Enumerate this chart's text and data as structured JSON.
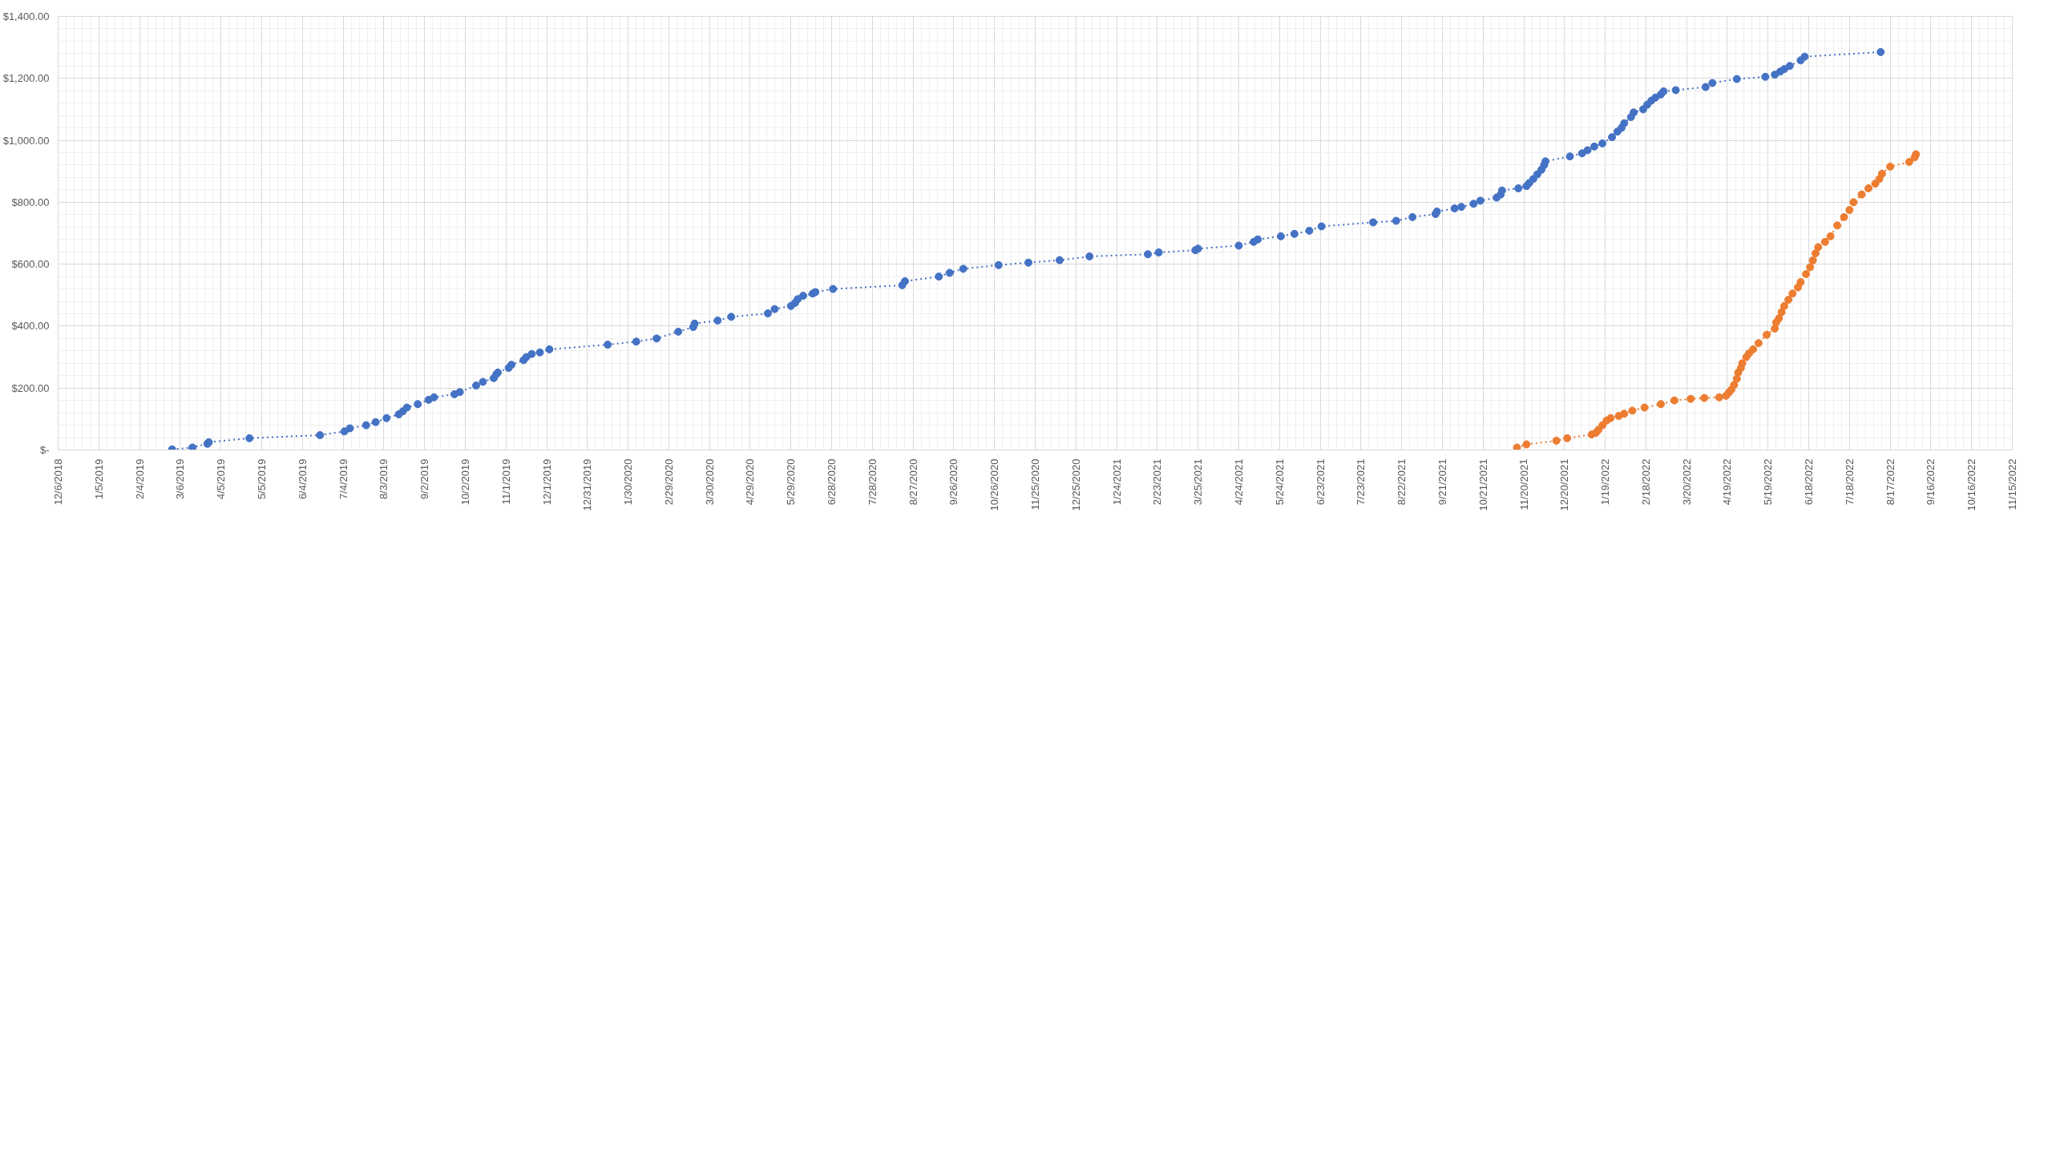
{
  "chart_data": {
    "type": "line",
    "marker": "circle",
    "line_style": "dotted",
    "grid": true,
    "xlim": [
      "2018-12-06",
      "2022-11-15"
    ],
    "xticks": [
      {
        "value": "2018-12-06",
        "label": "12/6/2018"
      },
      {
        "value": "2019-01-05",
        "label": "1/5/2019"
      },
      {
        "value": "2019-02-04",
        "label": "2/4/2019"
      },
      {
        "value": "2019-03-06",
        "label": "3/6/2019"
      },
      {
        "value": "2019-04-05",
        "label": "4/5/2019"
      },
      {
        "value": "2019-05-05",
        "label": "5/5/2019"
      },
      {
        "value": "2019-06-04",
        "label": "6/4/2019"
      },
      {
        "value": "2019-07-04",
        "label": "7/4/2019"
      },
      {
        "value": "2019-08-03",
        "label": "8/3/2019"
      },
      {
        "value": "2019-09-02",
        "label": "9/2/2019"
      },
      {
        "value": "2019-10-02",
        "label": "10/2/2019"
      },
      {
        "value": "2019-11-01",
        "label": "11/1/2019"
      },
      {
        "value": "2019-12-01",
        "label": "12/1/2019"
      },
      {
        "value": "2019-12-31",
        "label": "12/31/2019"
      },
      {
        "value": "2020-01-30",
        "label": "1/30/2020"
      },
      {
        "value": "2020-02-29",
        "label": "2/29/2020"
      },
      {
        "value": "2020-03-30",
        "label": "3/30/2020"
      },
      {
        "value": "2020-04-29",
        "label": "4/29/2020"
      },
      {
        "value": "2020-05-29",
        "label": "5/29/2020"
      },
      {
        "value": "2020-06-28",
        "label": "6/28/2020"
      },
      {
        "value": "2020-07-28",
        "label": "7/28/2020"
      },
      {
        "value": "2020-08-27",
        "label": "8/27/2020"
      },
      {
        "value": "2020-09-26",
        "label": "9/26/2020"
      },
      {
        "value": "2020-10-26",
        "label": "10/26/2020"
      },
      {
        "value": "2020-11-25",
        "label": "11/25/2020"
      },
      {
        "value": "2020-12-25",
        "label": "12/25/2020"
      },
      {
        "value": "2021-01-24",
        "label": "1/24/2021"
      },
      {
        "value": "2021-02-23",
        "label": "2/23/2021"
      },
      {
        "value": "2021-03-25",
        "label": "3/25/2021"
      },
      {
        "value": "2021-04-24",
        "label": "4/24/2021"
      },
      {
        "value": "2021-05-24",
        "label": "5/24/2021"
      },
      {
        "value": "2021-06-23",
        "label": "6/23/2021"
      },
      {
        "value": "2021-07-23",
        "label": "7/23/2021"
      },
      {
        "value": "2021-08-22",
        "label": "8/22/2021"
      },
      {
        "value": "2021-09-21",
        "label": "9/21/2021"
      },
      {
        "value": "2021-10-21",
        "label": "10/21/2021"
      },
      {
        "value": "2021-11-20",
        "label": "11/20/2021"
      },
      {
        "value": "2021-12-20",
        "label": "12/20/2021"
      },
      {
        "value": "2022-01-19",
        "label": "1/19/2022"
      },
      {
        "value": "2022-02-18",
        "label": "2/18/2022"
      },
      {
        "value": "2022-03-20",
        "label": "3/20/2022"
      },
      {
        "value": "2022-04-19",
        "label": "4/19/2022"
      },
      {
        "value": "2022-05-19",
        "label": "5/19/2022"
      },
      {
        "value": "2022-06-18",
        "label": "6/18/2022"
      },
      {
        "value": "2022-07-18",
        "label": "7/18/2022"
      },
      {
        "value": "2022-08-17",
        "label": "8/17/2022"
      },
      {
        "value": "2022-09-16",
        "label": "9/16/2022"
      },
      {
        "value": "2022-10-16",
        "label": "10/16/2022"
      },
      {
        "value": "2022-11-15",
        "label": "11/15/2022"
      }
    ],
    "ylim": [
      0,
      1400
    ],
    "yticks": [
      {
        "value": 0,
        "label": "$-"
      },
      {
        "value": 200,
        "label": "$200.00"
      },
      {
        "value": 400,
        "label": "$400.00"
      },
      {
        "value": 600,
        "label": "$600.00"
      },
      {
        "value": 800,
        "label": "$800.00"
      },
      {
        "value": 1000,
        "label": "$1,000.00"
      },
      {
        "value": 1200,
        "label": "$1,200.00"
      },
      {
        "value": 1400,
        "label": "$1,400.00"
      }
    ],
    "series": [
      {
        "color": "#4472c4",
        "x": [
          "2019-02-28",
          "2019-03-15",
          "2019-03-26",
          "2019-03-27",
          "2019-04-26",
          "2019-06-17",
          "2019-07-05",
          "2019-07-09",
          "2019-07-21",
          "2019-07-28",
          "2019-08-05",
          "2019-08-14",
          "2019-08-17",
          "2019-08-20",
          "2019-08-28",
          "2019-09-05",
          "2019-09-09",
          "2019-09-24",
          "2019-09-28",
          "2019-10-10",
          "2019-10-15",
          "2019-10-23",
          "2019-10-25",
          "2019-10-26",
          "2019-11-03",
          "2019-11-05",
          "2019-11-14",
          "2019-11-16",
          "2019-11-20",
          "2019-11-26",
          "2019-12-03",
          "2020-01-15",
          "2020-02-05",
          "2020-02-20",
          "2020-03-07",
          "2020-03-18",
          "2020-03-19",
          "2020-04-05",
          "2020-04-15",
          "2020-05-12",
          "2020-05-17",
          "2020-05-29",
          "2020-06-01",
          "2020-06-03",
          "2020-06-07",
          "2020-06-14",
          "2020-06-16",
          "2020-06-29",
          "2020-08-19",
          "2020-08-21",
          "2020-09-15",
          "2020-09-23",
          "2020-10-03",
          "2020-10-29",
          "2020-11-20",
          "2020-12-13",
          "2021-01-04",
          "2021-02-16",
          "2021-02-24",
          "2021-03-23",
          "2021-03-25",
          "2021-04-24",
          "2021-05-05",
          "2021-05-08",
          "2021-05-25",
          "2021-06-04",
          "2021-06-15",
          "2021-06-24",
          "2021-08-01",
          "2021-08-18",
          "2021-08-30",
          "2021-09-16",
          "2021-09-17",
          "2021-09-30",
          "2021-10-05",
          "2021-10-14",
          "2021-10-19",
          "2021-10-31",
          "2021-11-03",
          "2021-11-04",
          "2021-11-16",
          "2021-11-22",
          "2021-11-24",
          "2021-11-27",
          "2021-11-30",
          "2021-12-03",
          "2021-12-05",
          "2021-12-06",
          "2021-12-24",
          "2022-01-02",
          "2022-01-06",
          "2022-01-11",
          "2022-01-17",
          "2022-01-24",
          "2022-01-28",
          "2022-01-31",
          "2022-02-02",
          "2022-02-07",
          "2022-02-09",
          "2022-02-16",
          "2022-02-19",
          "2022-02-22",
          "2022-02-25",
          "2022-03-01",
          "2022-03-03",
          "2022-03-12",
          "2022-04-03",
          "2022-04-08",
          "2022-04-26",
          "2022-05-17",
          "2022-05-24",
          "2022-05-28",
          "2022-05-31",
          "2022-06-04",
          "2022-06-12",
          "2022-06-15",
          "2022-08-10"
        ],
        "values": [
          2,
          8,
          20,
          25,
          38,
          48,
          60,
          70,
          80,
          90,
          103,
          115,
          125,
          137,
          148,
          162,
          170,
          180,
          187,
          208,
          220,
          232,
          245,
          250,
          265,
          275,
          290,
          300,
          310,
          315,
          325,
          340,
          350,
          360,
          382,
          397,
          408,
          418,
          430,
          441,
          455,
          465,
          475,
          487,
          498,
          505,
          510,
          520,
          532,
          545,
          560,
          572,
          585,
          597,
          605,
          613,
          625,
          632,
          638,
          645,
          650,
          660,
          672,
          680,
          690,
          698,
          708,
          722,
          735,
          740,
          752,
          762,
          770,
          780,
          785,
          795,
          805,
          815,
          825,
          838,
          845,
          852,
          862,
          875,
          890,
          905,
          920,
          932,
          948,
          958,
          968,
          980,
          990,
          1010,
          1028,
          1040,
          1055,
          1075,
          1090,
          1100,
          1115,
          1128,
          1138,
          1148,
          1158,
          1162,
          1172,
          1185,
          1198,
          1205,
          1212,
          1222,
          1230,
          1240,
          1258,
          1270,
          1285
        ]
      },
      {
        "color": "#ed7d31",
        "x": [
          "2021-11-15",
          "2021-11-22",
          "2021-12-14",
          "2021-12-22",
          "2022-01-09",
          "2022-01-12",
          "2022-01-14",
          "2022-01-17",
          "2022-01-20",
          "2022-01-23",
          "2022-01-29",
          "2022-02-02",
          "2022-02-08",
          "2022-02-17",
          "2022-03-01",
          "2022-03-11",
          "2022-03-23",
          "2022-04-02",
          "2022-04-13",
          "2022-04-18",
          "2022-04-20",
          "2022-04-22",
          "2022-04-24",
          "2022-04-26",
          "2022-04-27",
          "2022-04-29",
          "2022-04-30",
          "2022-05-03",
          "2022-05-05",
          "2022-05-08",
          "2022-05-12",
          "2022-05-18",
          "2022-05-24",
          "2022-05-25",
          "2022-05-27",
          "2022-05-29",
          "2022-05-31",
          "2022-06-03",
          "2022-06-06",
          "2022-06-10",
          "2022-06-12",
          "2022-06-16",
          "2022-06-19",
          "2022-06-21",
          "2022-06-23",
          "2022-06-25",
          "2022-06-30",
          "2022-07-04",
          "2022-07-09",
          "2022-07-14",
          "2022-07-18",
          "2022-07-21",
          "2022-07-27",
          "2022-08-01",
          "2022-08-06",
          "2022-08-09",
          "2022-08-11",
          "2022-08-17",
          "2022-08-31",
          "2022-09-04",
          "2022-09-05"
        ],
        "values": [
          8,
          18,
          30,
          38,
          50,
          55,
          65,
          80,
          95,
          103,
          110,
          117,
          127,
          137,
          148,
          160,
          165,
          168,
          170,
          175,
          185,
          195,
          210,
          230,
          250,
          265,
          280,
          300,
          312,
          325,
          345,
          372,
          392,
          412,
          425,
          445,
          465,
          485,
          505,
          525,
          542,
          568,
          590,
          612,
          635,
          655,
          672,
          690,
          725,
          752,
          775,
          800,
          825,
          845,
          860,
          875,
          892,
          915,
          930,
          945,
          955
        ]
      }
    ]
  }
}
